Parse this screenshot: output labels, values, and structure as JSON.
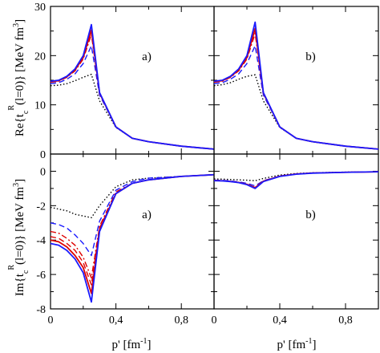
{
  "figure": {
    "xlabel": "p' [fm⁻¹]",
    "ylabel_top": "Re{t_c^R(l=0)} [MeV fm³]",
    "ylabel_bottom": "Im{t_c^R(l=0)} [MeV fm³]",
    "x_tick_labels": [
      "0",
      "0,4",
      "0,8"
    ]
  },
  "chart_data": [
    {
      "type": "line",
      "panel": "a)",
      "part": "real",
      "xlim": [
        0,
        1.0
      ],
      "ylim": [
        0,
        30
      ],
      "y_ticks": [
        0,
        10,
        20,
        30
      ],
      "series": [
        {
          "style": "solid",
          "color": "#1a1aff",
          "x": [
            0,
            0.05,
            0.1,
            0.15,
            0.2,
            0.25,
            0.3,
            0.4,
            0.5,
            0.6,
            0.8,
            1.0
          ],
          "y": [
            14.8,
            15.0,
            15.8,
            17.3,
            20.0,
            26.3,
            12.5,
            5.5,
            3.2,
            2.5,
            1.6,
            1.0
          ]
        },
        {
          "style": "solid",
          "color": "#dd0000",
          "x": [
            0,
            0.05,
            0.1,
            0.15,
            0.2,
            0.25,
            0.3,
            0.4,
            0.5,
            0.6,
            0.8,
            1.0
          ],
          "y": [
            14.7,
            14.9,
            15.7,
            17.1,
            19.6,
            25.2,
            12.4,
            5.5,
            3.2,
            2.5,
            1.6,
            1.0
          ]
        },
        {
          "style": "dashdot",
          "color": "#dd0000",
          "x": [
            0,
            0.05,
            0.1,
            0.15,
            0.2,
            0.25,
            0.3,
            0.4,
            0.5,
            0.6,
            0.8,
            1.0
          ],
          "y": [
            14.6,
            14.8,
            15.6,
            16.9,
            19.3,
            24.3,
            12.3,
            5.5,
            3.2,
            2.5,
            1.6,
            1.0
          ]
        },
        {
          "style": "dashed",
          "color": "#1a1aff",
          "x": [
            0,
            0.05,
            0.1,
            0.15,
            0.2,
            0.25,
            0.3,
            0.4,
            0.5,
            0.6,
            0.8,
            1.0
          ],
          "y": [
            14.3,
            14.5,
            15.2,
            16.3,
            18.4,
            22.0,
            12.0,
            5.5,
            3.2,
            2.5,
            1.6,
            1.0
          ]
        },
        {
          "style": "dotted",
          "color": "#000000",
          "x": [
            0,
            0.05,
            0.1,
            0.15,
            0.2,
            0.25,
            0.3,
            0.4,
            0.5,
            0.6,
            0.8,
            1.0
          ],
          "y": [
            13.9,
            14.0,
            14.3,
            14.9,
            15.6,
            16.2,
            10.8,
            5.4,
            3.2,
            2.5,
            1.6,
            1.0
          ]
        }
      ]
    },
    {
      "type": "line",
      "panel": "b)",
      "part": "real",
      "xlim": [
        0,
        1.0
      ],
      "ylim": [
        0,
        30
      ],
      "y_ticks": [
        0,
        10,
        20,
        30
      ],
      "series": [
        {
          "style": "solid",
          "color": "#1a1aff",
          "x": [
            0,
            0.05,
            0.1,
            0.15,
            0.2,
            0.25,
            0.3,
            0.4,
            0.5,
            0.6,
            0.8,
            1.0
          ],
          "y": [
            14.8,
            15.0,
            15.8,
            17.3,
            20.0,
            26.8,
            12.5,
            5.5,
            3.2,
            2.5,
            1.6,
            1.0
          ]
        },
        {
          "style": "solid",
          "color": "#dd0000",
          "x": [
            0,
            0.05,
            0.1,
            0.15,
            0.2,
            0.25,
            0.3,
            0.4,
            0.5,
            0.6,
            0.8,
            1.0
          ],
          "y": [
            14.7,
            14.9,
            15.7,
            17.1,
            19.6,
            25.5,
            12.4,
            5.5,
            3.2,
            2.5,
            1.6,
            1.0
          ]
        },
        {
          "style": "dashdot",
          "color": "#dd0000",
          "x": [
            0,
            0.05,
            0.1,
            0.15,
            0.2,
            0.25,
            0.3,
            0.4,
            0.5,
            0.6,
            0.8,
            1.0
          ],
          "y": [
            14.6,
            14.8,
            15.6,
            16.9,
            19.3,
            24.5,
            12.3,
            5.5,
            3.2,
            2.5,
            1.6,
            1.0
          ]
        },
        {
          "style": "dashed",
          "color": "#1a1aff",
          "x": [
            0,
            0.05,
            0.1,
            0.15,
            0.2,
            0.25,
            0.3,
            0.4,
            0.5,
            0.6,
            0.8,
            1.0
          ],
          "y": [
            14.3,
            14.5,
            15.2,
            16.3,
            18.4,
            22.0,
            12.0,
            5.5,
            3.2,
            2.5,
            1.6,
            1.0
          ]
        },
        {
          "style": "dotted",
          "color": "#000000",
          "x": [
            0,
            0.05,
            0.1,
            0.15,
            0.2,
            0.25,
            0.3,
            0.4,
            0.5,
            0.6,
            0.8,
            1.0
          ],
          "y": [
            13.9,
            14.1,
            14.5,
            15.2,
            15.8,
            16.1,
            10.8,
            5.4,
            3.2,
            2.5,
            1.6,
            1.0
          ]
        }
      ]
    },
    {
      "type": "line",
      "panel": "a)",
      "part": "imaginary",
      "xlim": [
        0,
        1.0
      ],
      "ylim": [
        -8,
        1
      ],
      "y_ticks": [
        -8,
        -6,
        -4,
        -2,
        0
      ],
      "series": [
        {
          "style": "solid",
          "color": "#1a1aff",
          "x": [
            0,
            0.05,
            0.1,
            0.15,
            0.2,
            0.25,
            0.3,
            0.4,
            0.5,
            0.6,
            0.8,
            1.0
          ],
          "y": [
            -4.2,
            -4.3,
            -4.6,
            -5.1,
            -5.9,
            -7.6,
            -3.5,
            -1.3,
            -0.7,
            -0.5,
            -0.3,
            -0.2
          ]
        },
        {
          "style": "solid",
          "color": "#dd0000",
          "x": [
            0,
            0.05,
            0.1,
            0.15,
            0.2,
            0.25,
            0.3,
            0.4,
            0.5,
            0.6,
            0.8,
            1.0
          ],
          "y": [
            -4.0,
            -4.1,
            -4.4,
            -4.9,
            -5.6,
            -7.1,
            -3.4,
            -1.3,
            -0.7,
            -0.5,
            -0.3,
            -0.2
          ]
        },
        {
          "style": "dashed",
          "color": "#dd0000",
          "x": [
            0,
            0.05,
            0.1,
            0.15,
            0.2,
            0.25,
            0.3,
            0.4,
            0.5,
            0.6,
            0.8,
            1.0
          ],
          "y": [
            -3.8,
            -3.9,
            -4.2,
            -4.6,
            -5.3,
            -6.6,
            -3.3,
            -1.3,
            -0.7,
            -0.5,
            -0.3,
            -0.2
          ]
        },
        {
          "style": "dashdot",
          "color": "#dd0000",
          "x": [
            0,
            0.05,
            0.1,
            0.15,
            0.2,
            0.25,
            0.3,
            0.4,
            0.5,
            0.6,
            0.8,
            1.0
          ],
          "y": [
            -3.5,
            -3.6,
            -3.9,
            -4.3,
            -5.0,
            -6.2,
            -3.2,
            -1.2,
            -0.7,
            -0.5,
            -0.3,
            -0.2
          ]
        },
        {
          "style": "dashed",
          "color": "#1a1aff",
          "x": [
            0,
            0.05,
            0.1,
            0.15,
            0.2,
            0.25,
            0.3,
            0.4,
            0.5,
            0.6,
            0.8,
            1.0
          ],
          "y": [
            -3.0,
            -3.1,
            -3.3,
            -3.7,
            -4.2,
            -4.9,
            -2.9,
            -1.1,
            -0.6,
            -0.4,
            -0.3,
            -0.2
          ]
        },
        {
          "style": "dotted",
          "color": "#000000",
          "x": [
            0,
            0.05,
            0.1,
            0.15,
            0.2,
            0.25,
            0.3,
            0.4,
            0.5,
            0.6,
            0.8,
            1.0
          ],
          "y": [
            -2.1,
            -2.2,
            -2.3,
            -2.5,
            -2.6,
            -2.7,
            -2.0,
            -0.9,
            -0.5,
            -0.4,
            -0.3,
            -0.2
          ]
        }
      ]
    },
    {
      "type": "line",
      "panel": "b)",
      "part": "imaginary",
      "xlim": [
        0,
        1.0
      ],
      "ylim": [
        -8,
        1
      ],
      "y_ticks": [
        -8,
        -6,
        -4,
        -2,
        0
      ],
      "series": [
        {
          "style": "solid",
          "color": "#1a1aff",
          "x": [
            0,
            0.05,
            0.1,
            0.15,
            0.2,
            0.25,
            0.3,
            0.4,
            0.5,
            0.6,
            0.8,
            1.0
          ],
          "y": [
            -0.55,
            -0.56,
            -0.6,
            -0.66,
            -0.78,
            -1.0,
            -0.6,
            -0.3,
            -0.17,
            -0.11,
            -0.06,
            -0.03
          ]
        },
        {
          "style": "solid",
          "color": "#dd0000",
          "x": [
            0,
            0.05,
            0.1,
            0.15,
            0.2,
            0.25,
            0.3,
            0.4,
            0.5,
            0.6,
            0.8,
            1.0
          ],
          "y": [
            -0.54,
            -0.55,
            -0.59,
            -0.65,
            -0.76,
            -0.95,
            -0.58,
            -0.29,
            -0.16,
            -0.1,
            -0.06,
            -0.03
          ]
        },
        {
          "style": "dashed",
          "color": "#1a1aff",
          "x": [
            0,
            0.05,
            0.1,
            0.15,
            0.2,
            0.25,
            0.3,
            0.4,
            0.5,
            0.6,
            0.8,
            1.0
          ],
          "y": [
            -0.52,
            -0.53,
            -0.56,
            -0.62,
            -0.7,
            -0.85,
            -0.55,
            -0.28,
            -0.16,
            -0.1,
            -0.06,
            -0.03
          ]
        },
        {
          "style": "dotted",
          "color": "#000000",
          "x": [
            0,
            0.05,
            0.1,
            0.15,
            0.2,
            0.25,
            0.3,
            0.4,
            0.5,
            0.6,
            0.8,
            1.0
          ],
          "y": [
            -0.45,
            -0.46,
            -0.48,
            -0.5,
            -0.52,
            -0.55,
            -0.42,
            -0.22,
            -0.13,
            -0.09,
            -0.05,
            -0.03
          ]
        }
      ]
    }
  ]
}
